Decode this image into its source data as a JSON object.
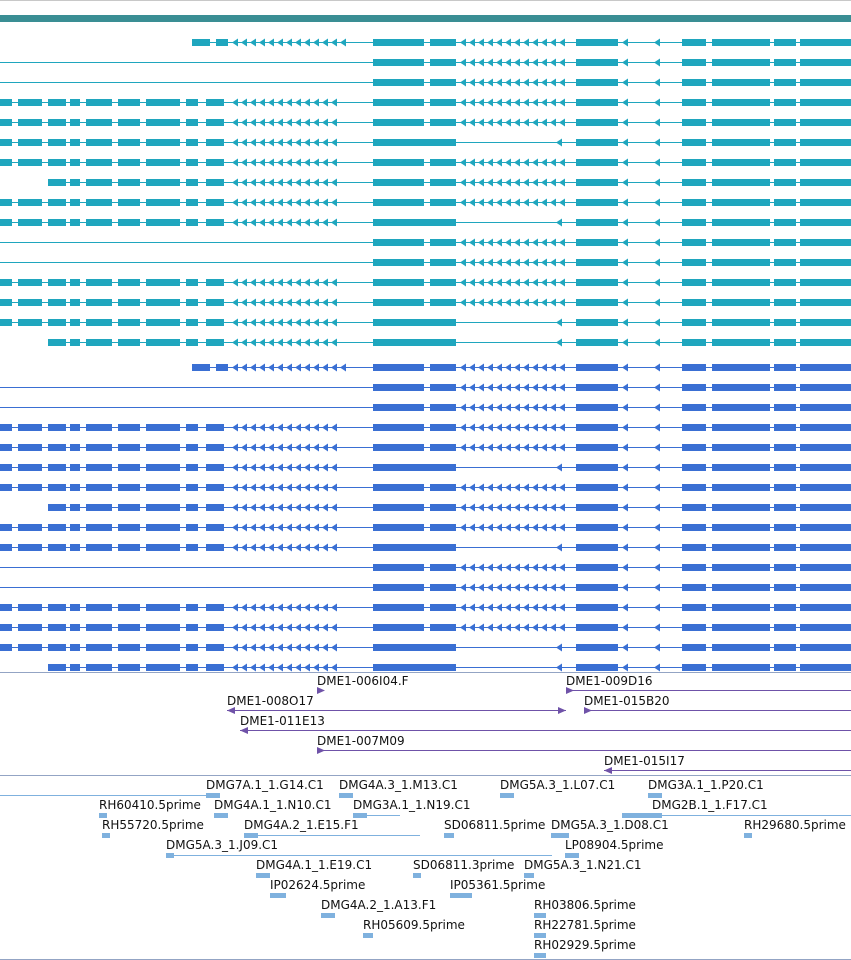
{
  "colors": {
    "top_bar": "#3A8E94",
    "transcript_teal": "#1FA6BE",
    "transcript_blue": "#3A6FD3",
    "section_line": "#93A4C4",
    "clone_purple": "#6F52A8",
    "clone_line": "#6F52A8",
    "est_light_blue": "#7FB1DE",
    "label_text": "#111111"
  },
  "tracks": {
    "transcripts_teal": {
      "name": "transcripts-teal",
      "rows": [
        {
          "layout": "B"
        },
        {
          "layout": "C"
        },
        {
          "layout": "C"
        },
        {
          "layout": "A"
        },
        {
          "layout": "A"
        },
        {
          "layout": "D"
        },
        {
          "layout": "A"
        },
        {
          "layout": "E"
        },
        {
          "layout": "A"
        },
        {
          "layout": "D"
        },
        {
          "layout": "F"
        },
        {
          "layout": "C"
        },
        {
          "layout": "A"
        },
        {
          "layout": "A"
        },
        {
          "layout": "D"
        },
        {
          "layout": "G"
        }
      ]
    },
    "transcripts_blue": {
      "name": "transcripts-blue",
      "rows": [
        {
          "layout": "B"
        },
        {
          "layout": "C"
        },
        {
          "layout": "C"
        },
        {
          "layout": "A"
        },
        {
          "layout": "A"
        },
        {
          "layout": "D"
        },
        {
          "layout": "A"
        },
        {
          "layout": "E"
        },
        {
          "layout": "A"
        },
        {
          "layout": "D"
        },
        {
          "layout": "F"
        },
        {
          "layout": "C"
        },
        {
          "layout": "A"
        },
        {
          "layout": "A"
        },
        {
          "layout": "D"
        },
        {
          "layout": "G"
        }
      ]
    },
    "clones": [
      {
        "label": "DME1-006I04.F",
        "dir": "right"
      },
      {
        "label": "DME1-009D16",
        "dir": "right"
      },
      {
        "label": "DME1-008O17",
        "dir": "left"
      },
      {
        "label": "DME1-015B20",
        "dir": "right"
      },
      {
        "label": "DME1-011E13",
        "dir": "left"
      },
      {
        "label": "DME1-007M09",
        "dir": "right"
      },
      {
        "label": "DME1-015I17",
        "dir": "left"
      }
    ],
    "ests": [
      {
        "label": "DMG7A.1_1.G14.C1"
      },
      {
        "label": "DMG4A.3_1.M13.C1"
      },
      {
        "label": "DMG5A.3_1.L07.C1"
      },
      {
        "label": "DMG3A.1_1.P20.C1"
      },
      {
        "label": "RH60410.5prime"
      },
      {
        "label": "DMG4A.1_1.N10.C1"
      },
      {
        "label": "DMG3A.1_1.N19.C1"
      },
      {
        "label": "DMG2B.1_1.F17.C1"
      },
      {
        "label": "RH55720.5prime"
      },
      {
        "label": "DMG4A.2_1.E15.F1"
      },
      {
        "label": "SD06811.5prime"
      },
      {
        "label": "DMG5A.3_1.D08.C1"
      },
      {
        "label": "RH29680.5prime"
      },
      {
        "label": "DMG5A.3_1.J09.C1"
      },
      {
        "label": "LP08904.5prime"
      },
      {
        "label": "DMG4A.1_1.E19.C1"
      },
      {
        "label": "SD06811.3prime"
      },
      {
        "label": "DMG5A.3_1.N21.C1"
      },
      {
        "label": "IP02624.5prime"
      },
      {
        "label": "IP05361.5prime"
      },
      {
        "label": "DMG4A.2_1.A13.F1"
      },
      {
        "label": "RH03806.5prime"
      },
      {
        "label": "RH05609.5prime"
      },
      {
        "label": "RH22781.5prime"
      },
      {
        "label": "RH02929.5prime"
      }
    ]
  }
}
